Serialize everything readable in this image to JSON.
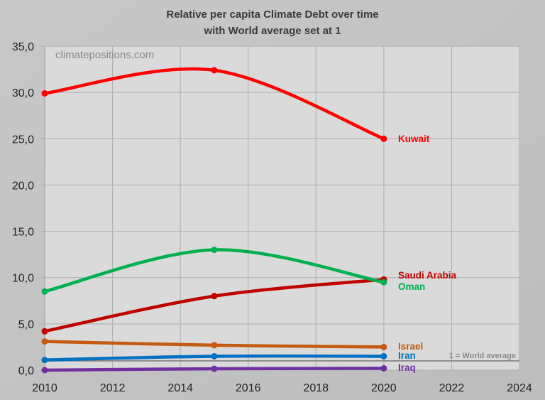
{
  "chart_data": {
    "type": "line",
    "title": "Relative per capita Climate Debt over time",
    "subtitle": "with World average set at 1",
    "watermark": "climatepositions.com",
    "xlabel": "",
    "ylabel": "",
    "xlim": [
      2010,
      2024
    ],
    "ylim": [
      0,
      35
    ],
    "x_ticks": [
      "2010",
      "2012",
      "2014",
      "2016",
      "2018",
      "2020",
      "2022",
      "2024"
    ],
    "y_ticks": [
      "0,0",
      "5,0",
      "10,0",
      "15,0",
      "20,0",
      "25,0",
      "30,0",
      "35,0"
    ],
    "grid": true,
    "smoothed": true,
    "x": [
      2010,
      2015,
      2020
    ],
    "series": [
      {
        "name": "Kuwait",
        "color": "#ff0000",
        "values": [
          29.9,
          32.4,
          25.0
        ]
      },
      {
        "name": "Oman",
        "color": "#00b050",
        "values": [
          8.5,
          13.0,
          9.5
        ]
      },
      {
        "name": "Saudi Arabia",
        "color": "#c00000",
        "values": [
          4.2,
          8.0,
          9.8
        ]
      },
      {
        "name": "Israel",
        "color": "#c55a11",
        "values": [
          3.1,
          2.7,
          2.5
        ]
      },
      {
        "name": "Iran",
        "color": "#0070c0",
        "values": [
          1.1,
          1.5,
          1.5
        ]
      },
      {
        "name": "Iraq",
        "color": "#7030a0",
        "values": [
          0.0,
          0.15,
          0.2
        ]
      }
    ],
    "reference_line": {
      "label": "1 = World average",
      "value": 1,
      "color": "#7f7f7f"
    },
    "legend_position": "direct labels at right of series end"
  }
}
